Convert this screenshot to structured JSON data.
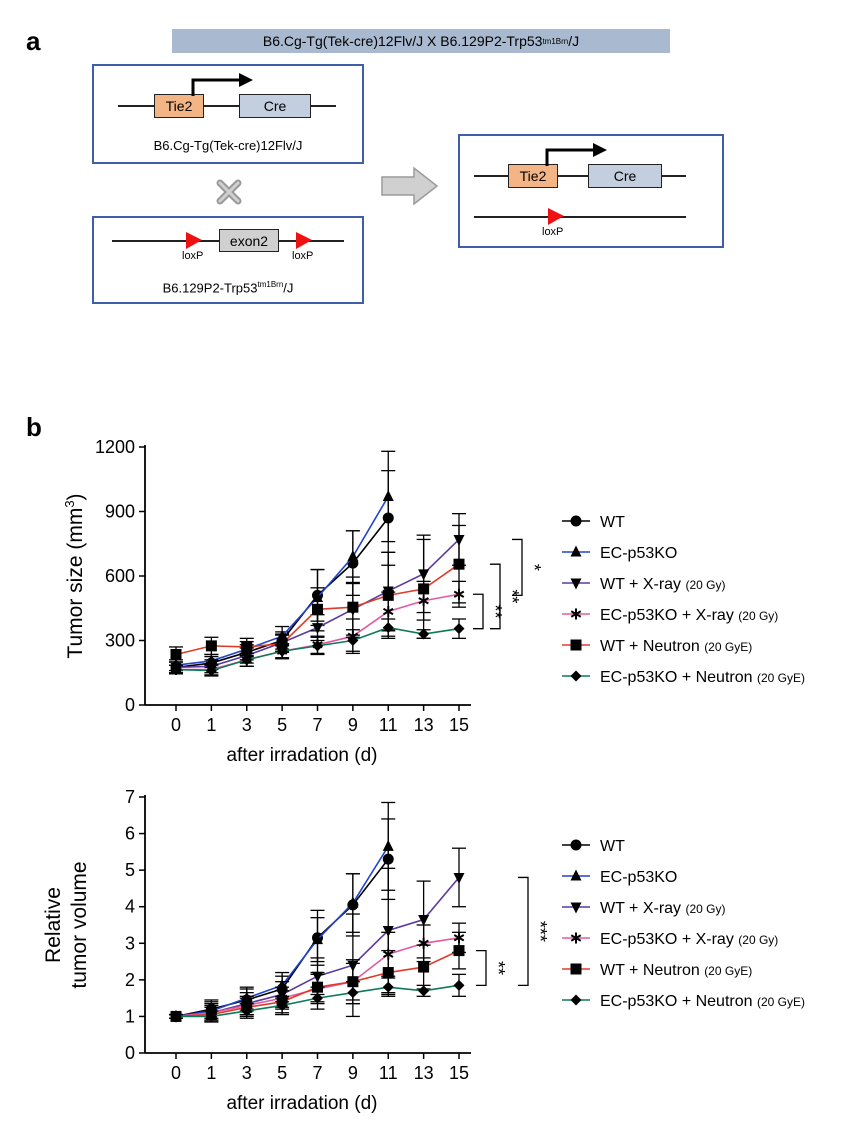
{
  "panel_a": {
    "label": "a",
    "header_pre": "B6.Cg-Tg(Tek-cre)12Flv/J X B6.129P2-Trp53",
    "header_sup": "tm1Brn",
    "header_post": "/J",
    "tie2": "Tie2",
    "cre": "Cre",
    "exon2": "exon2",
    "loxp": "loxP",
    "strain1": "B6.Cg-Tg(Tek-cre)12Flv/J",
    "strain2_pre": "B6.129P2-Trp53",
    "strain2_sup": "tm1Brn",
    "strain2_post": "/J",
    "colors": {
      "tie2": "#f3b486",
      "cre": "#c3cfdf",
      "exon2": "#d0d0d0",
      "loxp": "#ee1111",
      "header": "#a9b9d0",
      "box_border": "#3d5ea8"
    }
  },
  "panel_b": {
    "label": "b"
  },
  "chart_data": [
    {
      "type": "line",
      "ylabel": "Tumor size (mm",
      "ylabel_sup": "3",
      "ylabel_end": ")",
      "xlabel": "after irradation (d)",
      "x": [
        0,
        1,
        3,
        5,
        7,
        9,
        11,
        13,
        15
      ],
      "xticks": [
        "0",
        "1",
        "3",
        "5",
        "7",
        "9",
        "11",
        "13",
        "15"
      ],
      "ylim": [
        0,
        1200
      ],
      "yticks": [
        "0",
        "300",
        "600",
        "900",
        "1200"
      ],
      "ytick_values": [
        0,
        300,
        600,
        900,
        1200
      ],
      "series": [
        {
          "name": "WT",
          "dose": "",
          "color": "#000000",
          "marker": "circle",
          "values": [
            175,
            195,
            245,
            300,
            510,
            660,
            870,
            null,
            null
          ],
          "err": [
            25,
            30,
            35,
            40,
            120,
            150,
            220,
            null,
            null
          ]
        },
        {
          "name": "EC-p53KO",
          "dose": "",
          "color": "#2244cc",
          "marker": "triangle-up",
          "values": [
            185,
            205,
            260,
            320,
            500,
            690,
            970,
            null,
            null
          ],
          "err": [
            25,
            30,
            35,
            45,
            130,
            120,
            210,
            null,
            null
          ]
        },
        {
          "name": "WT + X-ray",
          "dose": "(20 Gy)",
          "color": "#5a3a9e",
          "marker": "triangle-down",
          "values": [
            175,
            180,
            230,
            290,
            360,
            445,
            530,
            610,
            770
          ],
          "err": [
            25,
            30,
            35,
            40,
            60,
            120,
            180,
            180,
            120
          ]
        },
        {
          "name": "EC-p53KO + X-ray",
          "dose": "(20 Gy)",
          "color": "#e35aa0",
          "marker": "asterisk",
          "values": [
            165,
            165,
            210,
            250,
            280,
            320,
            435,
            485,
            515
          ],
          "err": [
            20,
            25,
            30,
            35,
            40,
            80,
            90,
            90,
            60
          ]
        },
        {
          "name": "WT + Neutron",
          "dose": "(20 GyE)",
          "color": "#e03b2a",
          "marker": "square",
          "values": [
            235,
            275,
            270,
            285,
            445,
            455,
            510,
            540,
            655
          ],
          "err": [
            35,
            40,
            40,
            40,
            100,
            140,
            200,
            230,
            180
          ]
        },
        {
          "name": "EC-p53KO + Neutron",
          "dose": "(20 GyE)",
          "color": "#0e7a5a",
          "marker": "diamond",
          "values": [
            165,
            160,
            210,
            250,
            275,
            300,
            360,
            330,
            355
          ],
          "err": [
            20,
            25,
            30,
            30,
            40,
            50,
            40,
            20,
            45
          ]
        }
      ],
      "significance": [
        {
          "label": "*",
          "y1": 770,
          "y2": 510
        },
        {
          "label": "**",
          "y1": 655,
          "y2": 355
        },
        {
          "label": "**",
          "y1": 515,
          "y2": 355
        }
      ]
    },
    {
      "type": "line",
      "ylabel_line1": "Relative",
      "ylabel_line2": "tumor volume",
      "xlabel": "after irradation (d)",
      "x": [
        0,
        1,
        3,
        5,
        7,
        9,
        11,
        13,
        15
      ],
      "xticks": [
        "0",
        "1",
        "3",
        "5",
        "7",
        "9",
        "11",
        "13",
        "15"
      ],
      "ylim": [
        0,
        7
      ],
      "yticks": [
        "0",
        "1",
        "2",
        "3",
        "4",
        "5",
        "6",
        "7"
      ],
      "ytick_values": [
        0,
        1,
        2,
        3,
        4,
        5,
        6,
        7
      ],
      "series": [
        {
          "name": "WT",
          "dose": "",
          "color": "#000000",
          "marker": "circle",
          "values": [
            1,
            1.2,
            1.45,
            1.75,
            3.15,
            4.05,
            5.3,
            null,
            null
          ],
          "err": [
            0.05,
            0.25,
            0.3,
            0.35,
            0.75,
            0.85,
            1.1,
            null,
            null
          ]
        },
        {
          "name": "EC-p53KO",
          "dose": "",
          "color": "#2244cc",
          "marker": "triangle-up",
          "values": [
            1,
            1.15,
            1.5,
            1.85,
            3.1,
            4.1,
            5.65,
            null,
            null
          ],
          "err": [
            0.05,
            0.25,
            0.3,
            0.35,
            0.6,
            0.8,
            1.2,
            null,
            null
          ]
        },
        {
          "name": "WT + X-ray",
          "dose": "(20 Gy)",
          "color": "#5a3a9e",
          "marker": "triangle-down",
          "values": [
            1,
            1.1,
            1.35,
            1.6,
            2.1,
            2.4,
            3.35,
            3.65,
            4.8
          ],
          "err": [
            0.05,
            0.25,
            0.3,
            0.35,
            0.5,
            1.4,
            1.7,
            1.05,
            0.8
          ]
        },
        {
          "name": "EC-p53KO + X-ray",
          "dose": "(20 Gy)",
          "color": "#e35aa0",
          "marker": "asterisk",
          "values": [
            1,
            1.1,
            1.3,
            1.5,
            1.75,
            1.95,
            2.7,
            3.0,
            3.15
          ],
          "err": [
            0.05,
            0.2,
            0.25,
            0.3,
            0.4,
            0.6,
            0.6,
            0.5,
            0.4
          ]
        },
        {
          "name": "WT + Neutron",
          "dose": "(20 GyE)",
          "color": "#e03b2a",
          "marker": "square",
          "values": [
            1,
            1.05,
            1.25,
            1.4,
            1.8,
            1.95,
            2.2,
            2.35,
            2.8
          ],
          "err": [
            0.05,
            0.2,
            0.25,
            0.3,
            0.4,
            0.5,
            0.6,
            0.6,
            0.5
          ]
        },
        {
          "name": "EC-p53KO + Neutron",
          "dose": "(20 GyE)",
          "color": "#0e7a5a",
          "marker": "diamond",
          "values": [
            1,
            1.0,
            1.15,
            1.3,
            1.5,
            1.65,
            1.8,
            1.7,
            1.85
          ],
          "err": [
            0.05,
            0.15,
            0.2,
            0.25,
            0.3,
            0.3,
            0.25,
            0.15,
            0.3
          ]
        }
      ],
      "significance": [
        {
          "label": "***",
          "y1": 4.8,
          "y2": 1.85
        },
        {
          "label": "**",
          "y1": 2.8,
          "y2": 1.85
        }
      ]
    }
  ]
}
